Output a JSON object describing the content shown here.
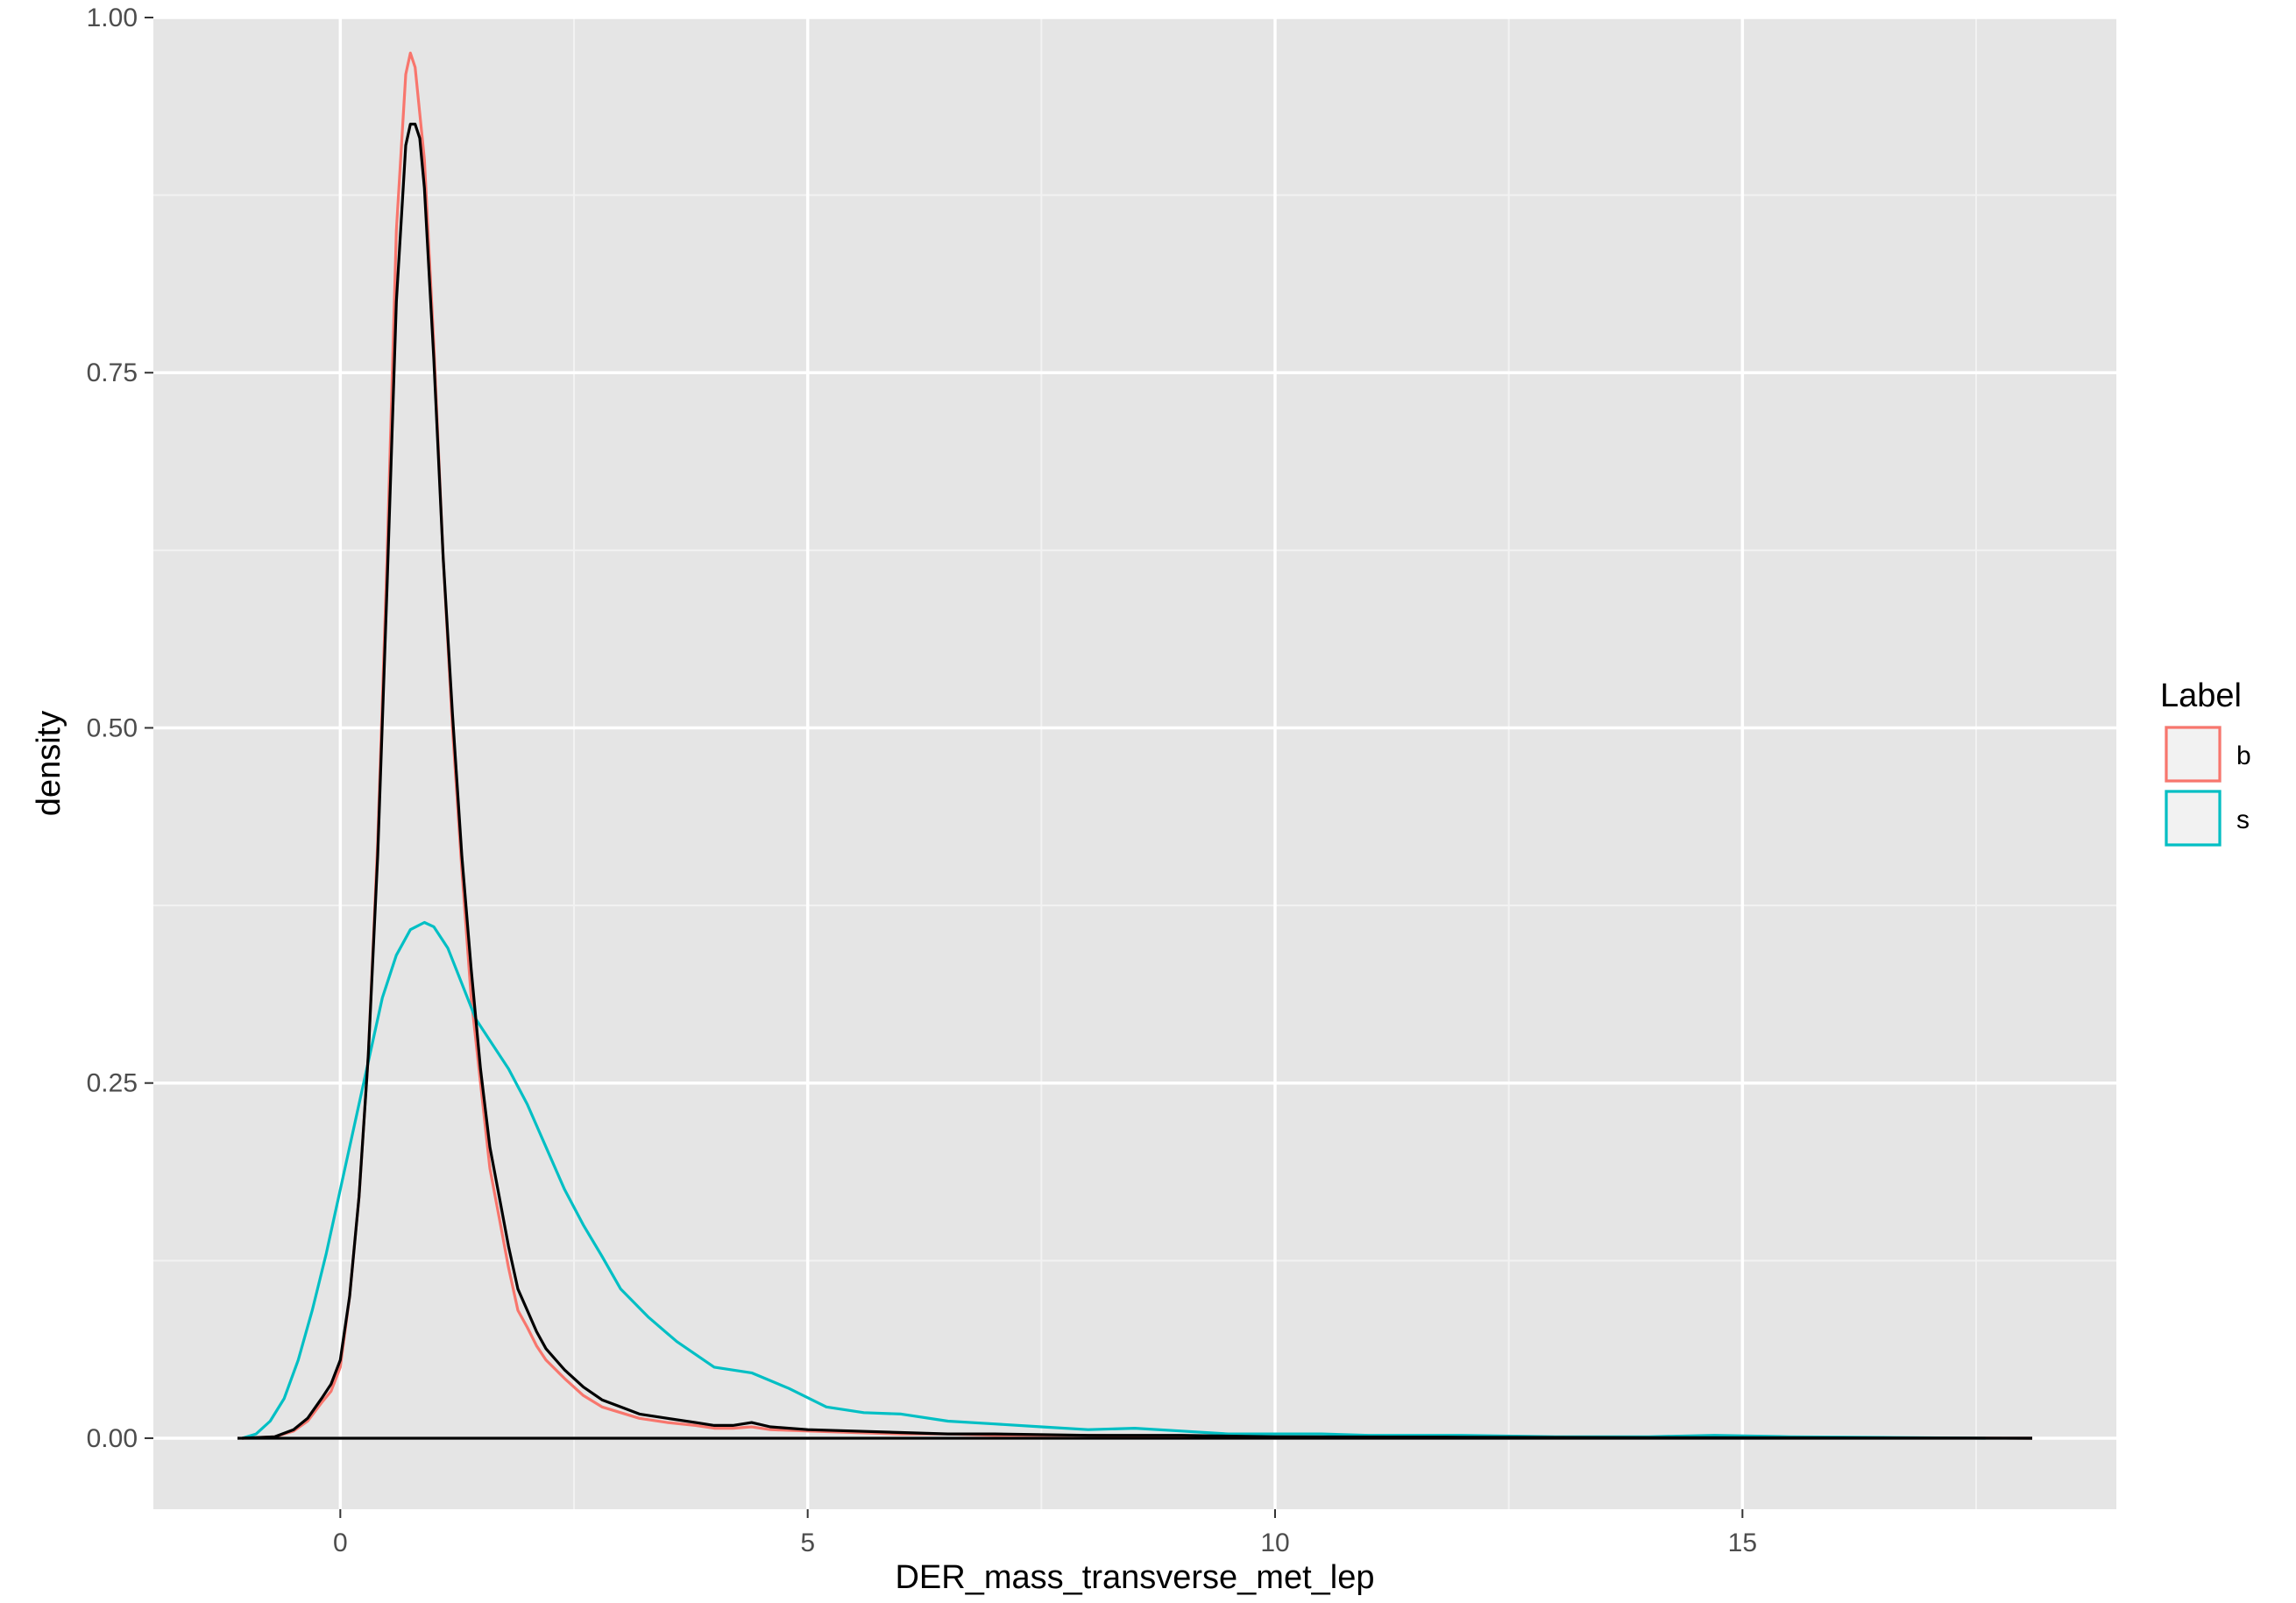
{
  "chart_data": {
    "type": "line",
    "title": "",
    "xlabel": "DER_mass_transverse_met_lep",
    "ylabel": "density",
    "xlim": [
      -2,
      19
    ],
    "ylim": [
      -0.05,
      1.0
    ],
    "x_ticks": [
      0,
      5,
      10,
      15
    ],
    "x_tick_labels": [
      "0",
      "5",
      "10",
      "15"
    ],
    "y_ticks": [
      0.0,
      0.25,
      0.5,
      0.75,
      1.0
    ],
    "y_tick_labels": [
      "0.00",
      "0.25",
      "0.50",
      "0.75",
      "1.00"
    ],
    "grid": true,
    "legend": {
      "title": "Label",
      "placement": "right",
      "entries": [
        {
          "label": "b",
          "color": "#F8766D"
        },
        {
          "label": "s",
          "color": "#00BFC4"
        }
      ]
    },
    "series": [
      {
        "name": "b",
        "color": "#F8766D",
        "x": [
          -1.05,
          -0.7,
          -0.5,
          -0.35,
          -0.2,
          -0.1,
          0.0,
          0.1,
          0.2,
          0.3,
          0.4,
          0.5,
          0.6,
          0.7,
          0.75,
          0.8,
          0.9,
          1.0,
          1.1,
          1.2,
          1.3,
          1.4,
          1.5,
          1.6,
          1.7,
          1.8,
          1.9,
          2.0,
          2.1,
          2.2,
          2.4,
          2.6,
          2.8,
          3.0,
          3.2,
          3.5,
          3.8,
          4.0,
          4.2,
          4.4,
          4.6,
          5.0,
          5.5,
          6.0,
          6.5,
          7.0,
          8.0,
          9.0,
          10.0,
          12.0,
          14.0,
          16.0,
          18.1
        ],
        "y": [
          0.0,
          0.001,
          0.005,
          0.012,
          0.025,
          0.033,
          0.05,
          0.1,
          0.17,
          0.27,
          0.42,
          0.62,
          0.85,
          0.96,
          0.975,
          0.965,
          0.9,
          0.77,
          0.62,
          0.5,
          0.4,
          0.31,
          0.25,
          0.19,
          0.155,
          0.12,
          0.09,
          0.078,
          0.065,
          0.055,
          0.042,
          0.03,
          0.022,
          0.018,
          0.014,
          0.011,
          0.009,
          0.007,
          0.007,
          0.008,
          0.006,
          0.005,
          0.004,
          0.003,
          0.003,
          0.002,
          0.002,
          0.001,
          0.001,
          0.0005,
          0.0003,
          0.0002,
          0.0
        ]
      },
      {
        "name": "s",
        "color": "#00BFC4",
        "x": [
          -1.05,
          -0.9,
          -0.75,
          -0.6,
          -0.45,
          -0.3,
          -0.15,
          0.0,
          0.15,
          0.3,
          0.45,
          0.6,
          0.75,
          0.9,
          1.0,
          1.15,
          1.3,
          1.45,
          1.6,
          1.8,
          2.0,
          2.2,
          2.4,
          2.6,
          2.8,
          3.0,
          3.3,
          3.6,
          4.0,
          4.4,
          4.8,
          5.2,
          5.6,
          6.0,
          6.5,
          7.0,
          7.5,
          8.0,
          8.5,
          9.0,
          9.5,
          10.0,
          10.5,
          11.0,
          12.0,
          13.0,
          14.0,
          14.7,
          15.5,
          16.5,
          17.6
        ],
        "y": [
          0.0,
          0.003,
          0.012,
          0.028,
          0.055,
          0.09,
          0.13,
          0.175,
          0.22,
          0.265,
          0.31,
          0.34,
          0.358,
          0.363,
          0.36,
          0.345,
          0.32,
          0.295,
          0.28,
          0.26,
          0.235,
          0.205,
          0.175,
          0.15,
          0.128,
          0.105,
          0.085,
          0.068,
          0.05,
          0.046,
          0.035,
          0.022,
          0.018,
          0.017,
          0.012,
          0.01,
          0.008,
          0.006,
          0.007,
          0.005,
          0.003,
          0.003,
          0.003,
          0.002,
          0.002,
          0.001,
          0.001,
          0.002,
          0.001,
          0.0005,
          0.0
        ]
      },
      {
        "name": "",
        "color": "#000000",
        "x": [
          -1.05,
          -0.7,
          -0.5,
          -0.35,
          -0.2,
          -0.1,
          0.0,
          0.1,
          0.2,
          0.3,
          0.4,
          0.5,
          0.6,
          0.7,
          0.75,
          0.8,
          0.85,
          0.9,
          1.0,
          1.1,
          1.2,
          1.3,
          1.4,
          1.5,
          1.6,
          1.7,
          1.8,
          1.9,
          2.0,
          2.1,
          2.2,
          2.4,
          2.6,
          2.8,
          3.0,
          3.2,
          3.5,
          3.8,
          4.0,
          4.2,
          4.4,
          4.6,
          5.0,
          5.5,
          6.0,
          6.5,
          7.0,
          8.0,
          9.0,
          10.0,
          12.0,
          14.0,
          16.0,
          18.1
        ],
        "y": [
          0.0,
          0.001,
          0.006,
          0.014,
          0.028,
          0.038,
          0.055,
          0.1,
          0.17,
          0.27,
          0.41,
          0.6,
          0.8,
          0.91,
          0.925,
          0.925,
          0.915,
          0.88,
          0.76,
          0.62,
          0.51,
          0.41,
          0.33,
          0.26,
          0.205,
          0.17,
          0.135,
          0.105,
          0.09,
          0.075,
          0.063,
          0.048,
          0.036,
          0.027,
          0.022,
          0.017,
          0.014,
          0.011,
          0.009,
          0.009,
          0.011,
          0.008,
          0.006,
          0.005,
          0.004,
          0.003,
          0.003,
          0.002,
          0.002,
          0.001,
          0.0007,
          0.0004,
          0.0002,
          0.0
        ]
      }
    ],
    "baseline": {
      "x": [
        -1.1,
        18.1
      ],
      "y": [
        0.0,
        0.0
      ],
      "color": "#000000"
    }
  }
}
